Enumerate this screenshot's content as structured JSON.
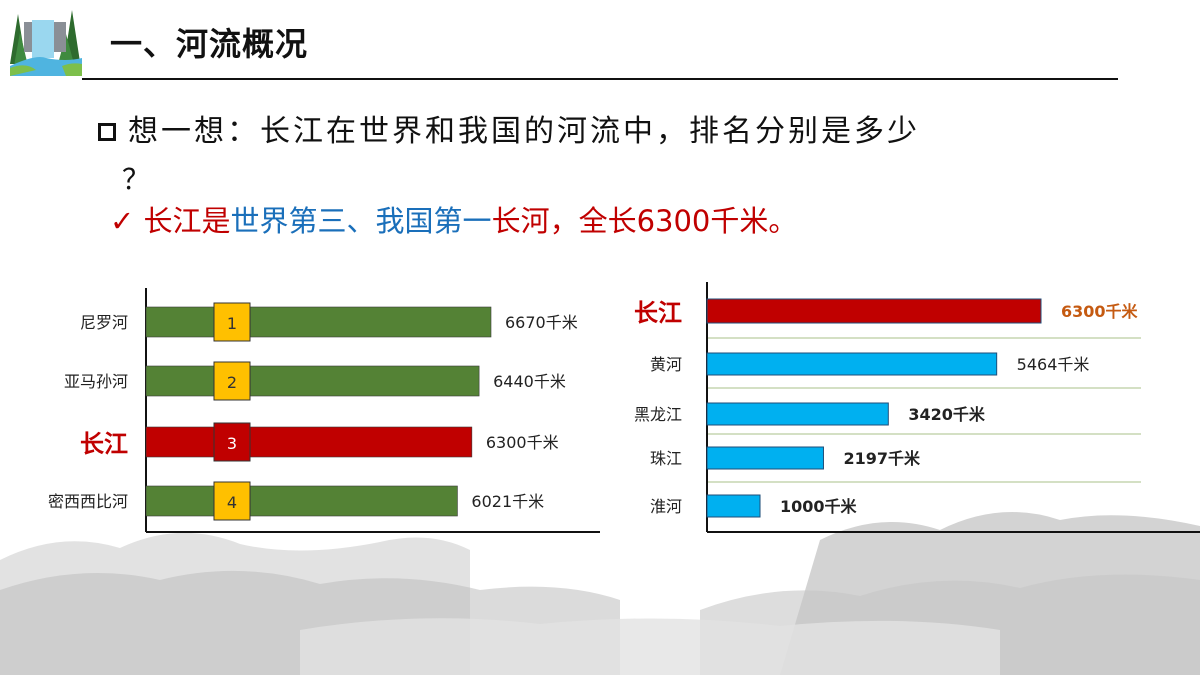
{
  "header": {
    "title": "一、河流概况",
    "logo_icon": "waterfall-forest-icon"
  },
  "question": {
    "icon": "hollow-square-bullet-icon",
    "text": "想一想：长江在世界和我国的河流中，排名分别是多少",
    "text_cont": "？"
  },
  "answer": {
    "check": "✓",
    "part1": "长江是",
    "part2": "世界第三、我国第一",
    "part3": "长河，全长6300千米。",
    "colors": {
      "red": "#c00000",
      "blue": "#1a6fba"
    }
  },
  "chart_data": [
    {
      "type": "bar",
      "orientation": "horizontal",
      "categories": [
        "尼罗河",
        "亚马孙河",
        "长江",
        "密西西比河"
      ],
      "values": [
        6670,
        6440,
        6300,
        6021
      ],
      "value_labels": [
        "6670千米",
        "6440千米",
        "6300千米",
        "6021千米"
      ],
      "ranks": [
        "1",
        "2",
        "3",
        "4"
      ],
      "highlight": "长江",
      "colors": {
        "bar": "#548235",
        "highlight": "#c00000",
        "rank_badge": "#ffc000"
      },
      "xlim": [
        0,
        7200
      ],
      "grid": false
    },
    {
      "type": "bar",
      "orientation": "horizontal",
      "categories": [
        "长江",
        "黄河",
        "黑龙江",
        "珠江",
        "淮河"
      ],
      "values": [
        6300,
        5464,
        3420,
        2197,
        1000
      ],
      "value_labels": [
        "6300千米",
        "5464千米",
        "3420千米",
        "2197千米",
        "1000千米"
      ],
      "highlight": "长江",
      "colors": {
        "bar": "#00b0f0",
        "highlight": "#c00000",
        "highlight_label": "#c55a11",
        "gridline": "#a9c08a"
      },
      "xlim": [
        0,
        7200
      ],
      "grid": true
    }
  ]
}
